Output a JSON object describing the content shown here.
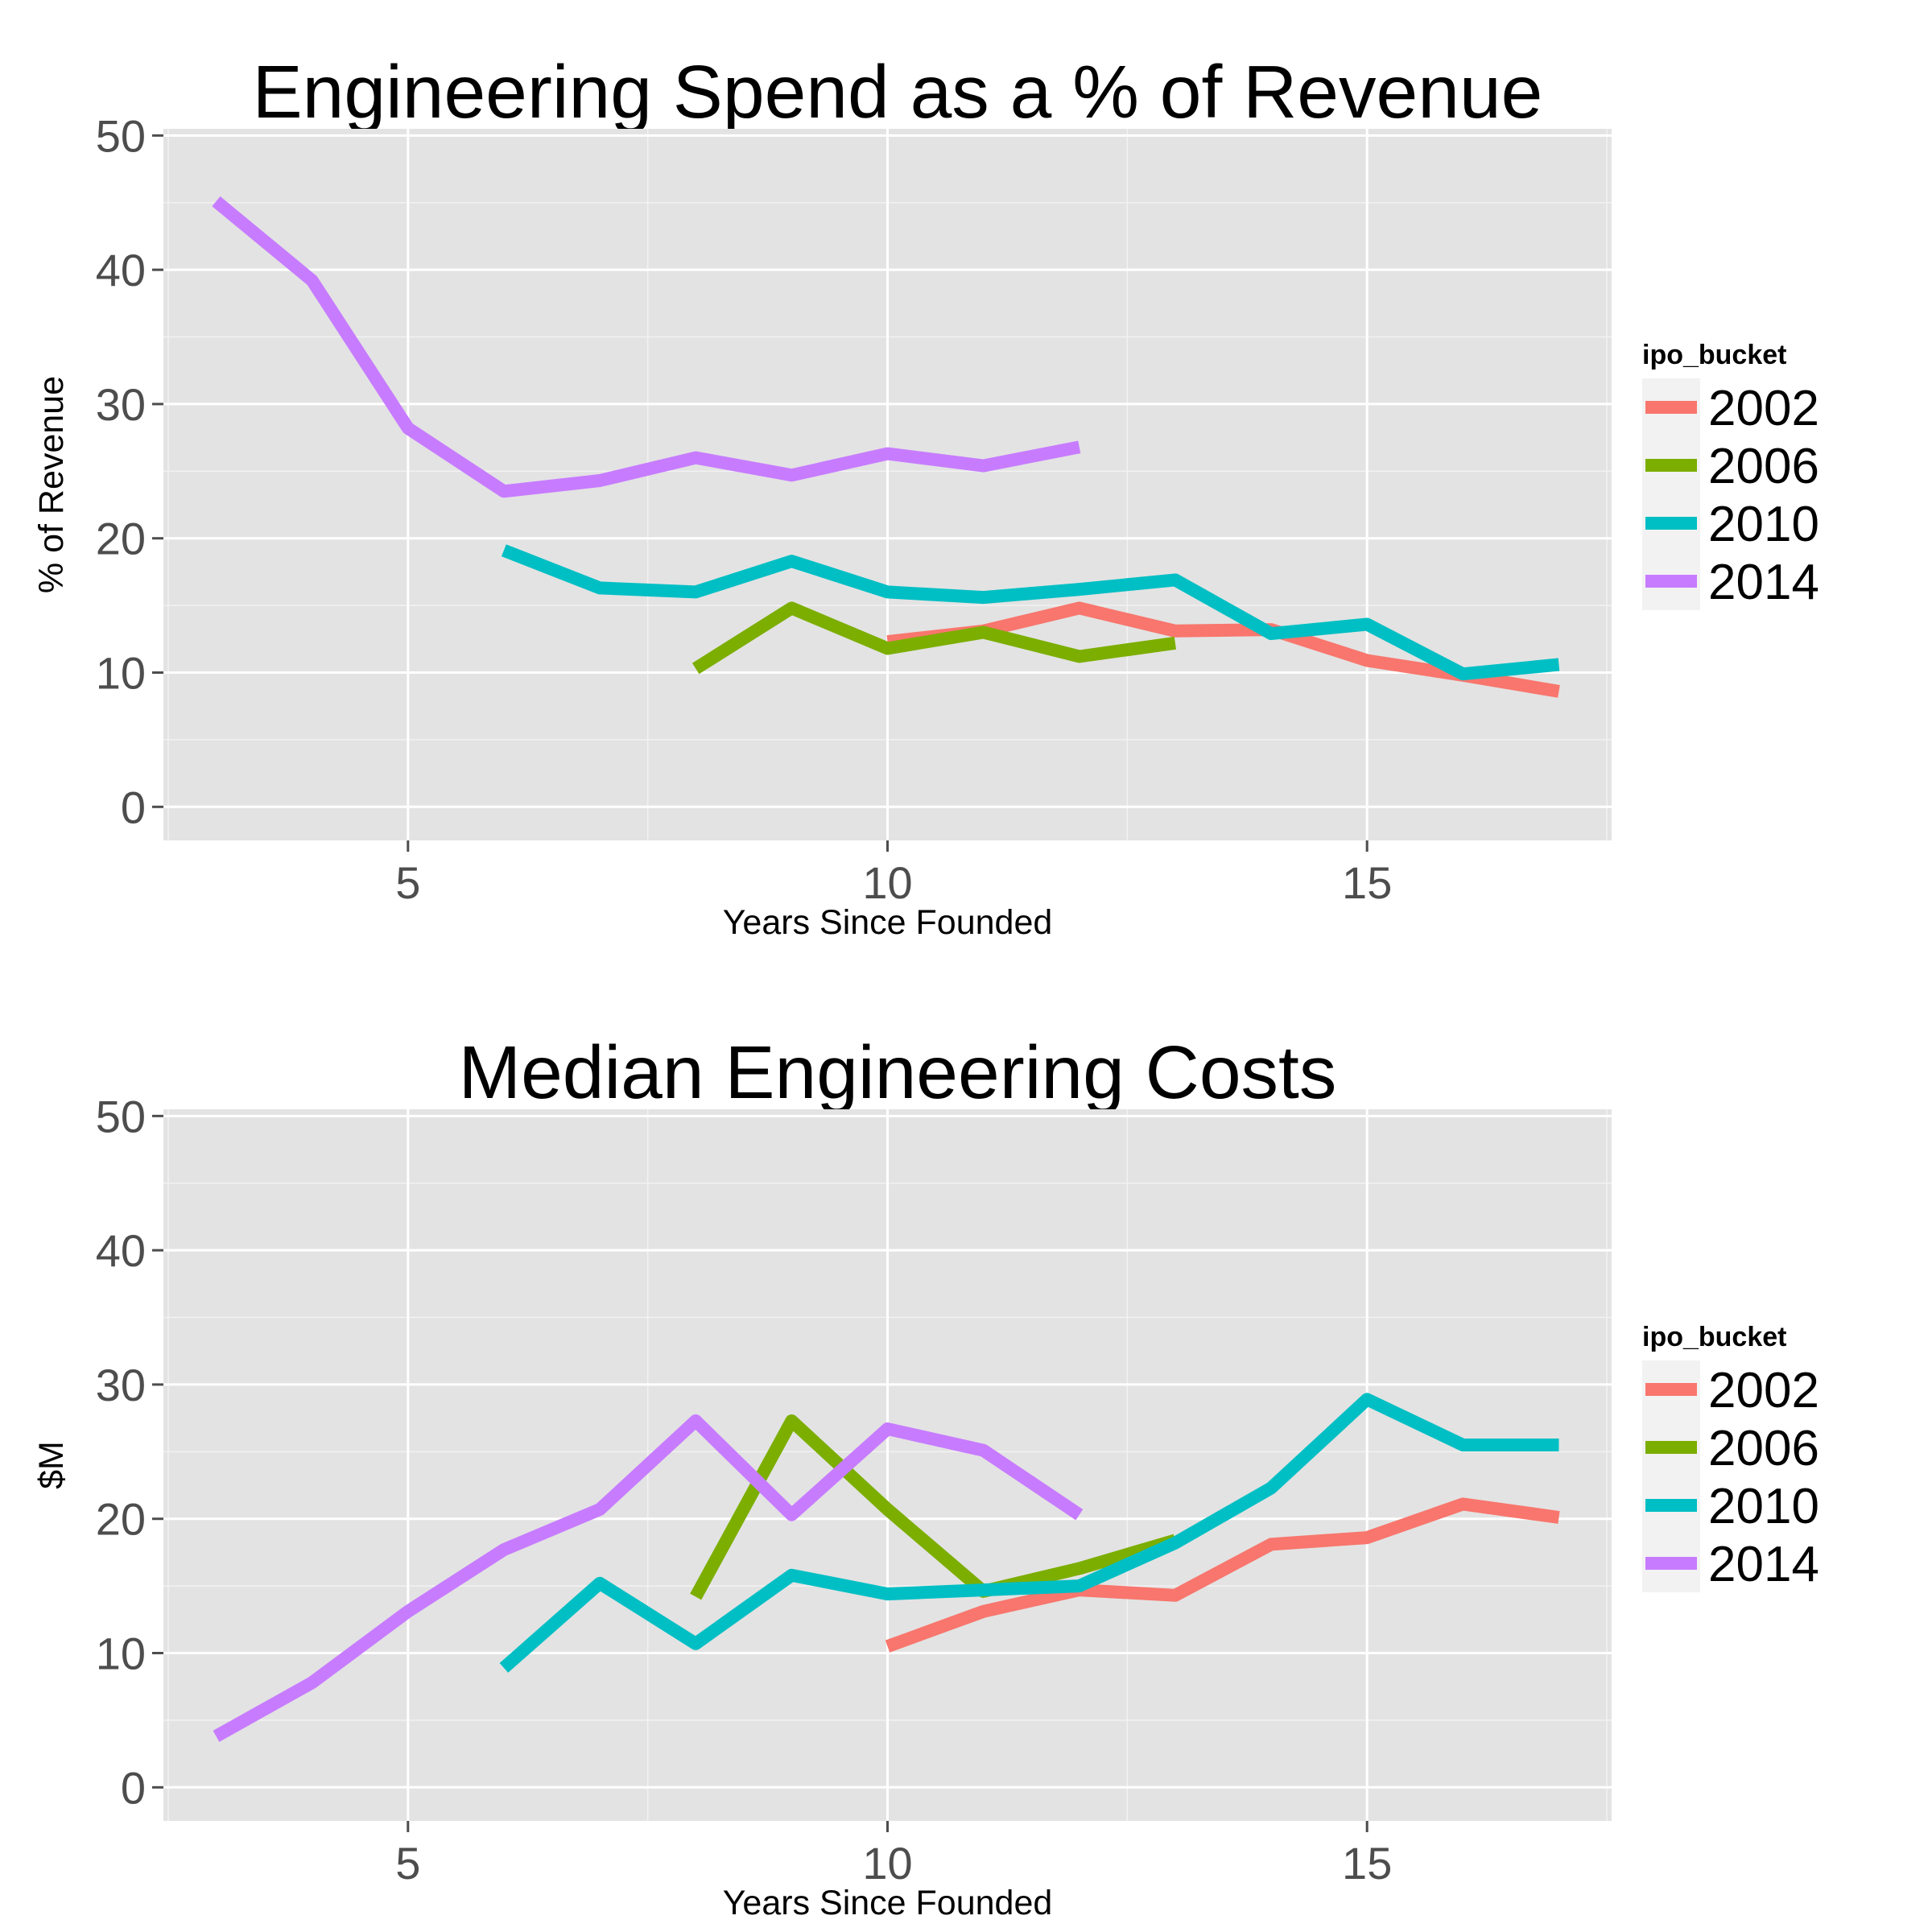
{
  "chart_data": [
    {
      "type": "line",
      "title": "Engineering Spend as a % of Revenue",
      "xlabel": "Years Since Founded",
      "ylabel": "% of Revenue",
      "xlim": [
        2.45,
        17.55
      ],
      "ylim": [
        -2.5,
        50.5
      ],
      "xticks": [
        5,
        10,
        15
      ],
      "yticks": [
        0,
        10,
        20,
        30,
        40,
        50
      ],
      "grid": true,
      "legend": {
        "title": "ipo_bucket",
        "position": "right"
      },
      "series": [
        {
          "name": "2002",
          "color": "#F8766D",
          "x": [
            10,
            11,
            12,
            13,
            14,
            15,
            16,
            17
          ],
          "y": [
            12.3,
            13.1,
            14.8,
            13.1,
            13.2,
            10.9,
            9.8,
            8.6
          ]
        },
        {
          "name": "2006",
          "color": "#7CAE00",
          "x": [
            8,
            9,
            10,
            11,
            12,
            13
          ],
          "y": [
            10.3,
            14.8,
            11.8,
            13.0,
            11.2,
            12.2
          ]
        },
        {
          "name": "2010",
          "color": "#00BFC4",
          "x": [
            6,
            7,
            8,
            9,
            10,
            11,
            12,
            13,
            14,
            15,
            16,
            17
          ],
          "y": [
            19.1,
            16.3,
            16.0,
            18.3,
            16.0,
            15.6,
            16.2,
            16.9,
            12.9,
            13.6,
            9.9,
            10.6
          ]
        },
        {
          "name": "2014",
          "color": "#C77CFF",
          "x": [
            3,
            4,
            5,
            6,
            7,
            8,
            9,
            10,
            11,
            12
          ],
          "y": [
            45.1,
            39.2,
            28.2,
            23.5,
            24.3,
            26.0,
            24.7,
            26.3,
            25.4,
            26.8
          ]
        }
      ]
    },
    {
      "type": "line",
      "title": "Median Engineering Costs",
      "xlabel": "Years Since Founded",
      "ylabel": "$M",
      "xlim": [
        2.45,
        17.55
      ],
      "ylim": [
        -2.5,
        50.5
      ],
      "xticks": [
        5,
        10,
        15
      ],
      "yticks": [
        0,
        10,
        20,
        30,
        40,
        50
      ],
      "grid": true,
      "legend": {
        "title": "ipo_bucket",
        "position": "right"
      },
      "series": [
        {
          "name": "2002",
          "color": "#F8766D",
          "x": [
            10,
            11,
            12,
            13,
            14,
            15,
            16,
            17
          ],
          "y": [
            10.5,
            13.1,
            14.7,
            14.3,
            18.1,
            18.6,
            21.1,
            20.1
          ]
        },
        {
          "name": "2006",
          "color": "#7CAE00",
          "x": [
            8,
            9,
            10,
            11,
            12,
            13
          ],
          "y": [
            14.2,
            27.3,
            20.7,
            14.6,
            16.3,
            18.4
          ]
        },
        {
          "name": "2010",
          "color": "#00BFC4",
          "x": [
            6,
            7,
            8,
            9,
            10,
            11,
            12,
            13,
            14,
            15,
            16,
            17
          ],
          "y": [
            8.9,
            15.2,
            10.7,
            15.8,
            14.4,
            14.7,
            15.0,
            18.2,
            22.3,
            28.9,
            25.5,
            25.5
          ]
        },
        {
          "name": "2014",
          "color": "#C77CFF",
          "x": [
            3,
            4,
            5,
            6,
            7,
            8,
            9,
            10,
            11,
            12
          ],
          "y": [
            3.8,
            7.8,
            13.1,
            17.7,
            20.7,
            27.3,
            20.3,
            26.7,
            25.1,
            20.3
          ]
        }
      ]
    }
  ]
}
